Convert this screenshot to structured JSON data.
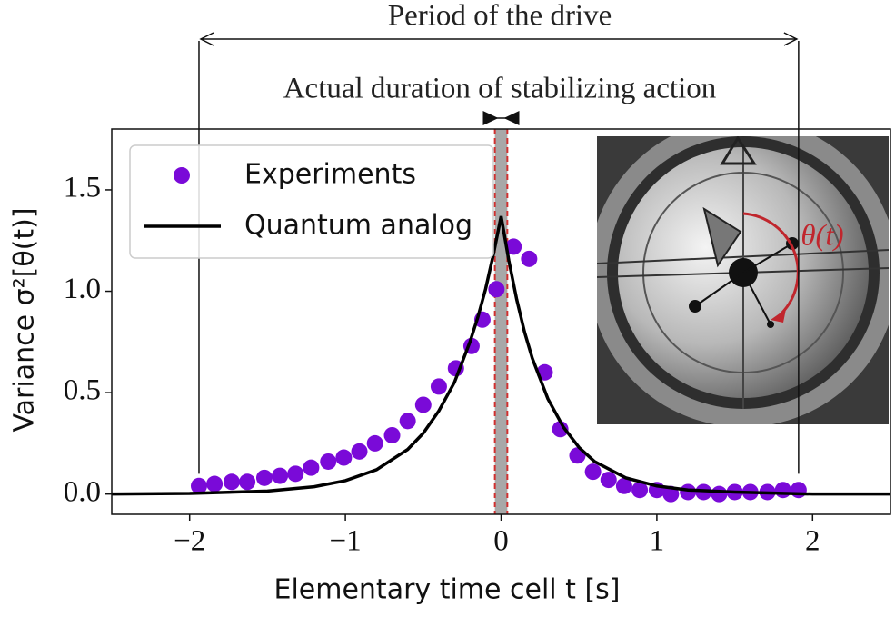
{
  "chart_data": {
    "type": "scatter",
    "title": "Period of the drive",
    "subtitle": "Actual duration of stabilizing action",
    "xlabel": "Elementary time cell t [s]",
    "ylabel": "Variance σ²[θ(t)]",
    "inset_label": "θ(t)",
    "period_span": [
      -1.94,
      1.91
    ],
    "highlight_span": [
      -0.04,
      0.04
    ],
    "xlim": [
      -2.5,
      2.5
    ],
    "ylim": [
      -0.1,
      1.8
    ],
    "xticks": [
      {
        "value": -2,
        "label": "−2"
      },
      {
        "value": -1,
        "label": "−1"
      },
      0,
      1,
      2
    ],
    "yticks": [
      {
        "value": 0,
        "label": "0.0"
      },
      0.5,
      {
        "value": 1,
        "label": "1.0"
      },
      1.5
    ],
    "grid": false,
    "legend": "upper left",
    "series": [
      {
        "name": "Experiments",
        "color": "#7a0ad8",
        "mark": "scatter",
        "x": [
          -1.94,
          -1.84,
          -1.73,
          -1.63,
          -1.52,
          -1.42,
          -1.32,
          -1.22,
          -1.11,
          -1.01,
          -0.91,
          -0.81,
          -0.7,
          -0.6,
          -0.5,
          -0.4,
          -0.29,
          -0.19,
          -0.12,
          -0.03,
          0.08,
          0.18,
          0.28,
          0.38,
          0.49,
          0.59,
          0.69,
          0.79,
          0.89,
          1.0,
          1.09,
          1.2,
          1.3,
          1.4,
          1.5,
          1.6,
          1.71,
          1.81,
          1.91
        ],
        "values": [
          0.04,
          0.05,
          0.06,
          0.06,
          0.08,
          0.09,
          0.1,
          0.13,
          0.16,
          0.18,
          0.21,
          0.25,
          0.29,
          0.36,
          0.44,
          0.53,
          0.62,
          0.73,
          0.86,
          1.01,
          1.22,
          1.16,
          0.6,
          0.32,
          0.19,
          0.11,
          0.07,
          0.04,
          0.02,
          0.02,
          0.0,
          0.01,
          0.01,
          0.0,
          0.01,
          0.01,
          0.01,
          0.02,
          0.02
        ]
      },
      {
        "name": "Quantum analog",
        "color": "#000000",
        "mark": "line",
        "x": [
          -2.5,
          -2,
          -1.5,
          -1.2,
          -1,
          -0.8,
          -0.6,
          -0.5,
          -0.4,
          -0.3,
          -0.2,
          -0.15,
          -0.1,
          -0.05,
          0,
          0.05,
          0.1,
          0.15,
          0.2,
          0.3,
          0.4,
          0.5,
          0.6,
          0.8,
          1,
          1.2,
          1.5,
          2,
          2.5
        ],
        "values": [
          0.0,
          0.003,
          0.015,
          0.036,
          0.066,
          0.12,
          0.22,
          0.3,
          0.41,
          0.55,
          0.75,
          0.87,
          1.01,
          1.18,
          1.37,
          1.15,
          0.96,
          0.8,
          0.67,
          0.47,
          0.33,
          0.23,
          0.16,
          0.08,
          0.04,
          0.02,
          0.01,
          0.0,
          0.0
        ]
      }
    ]
  }
}
